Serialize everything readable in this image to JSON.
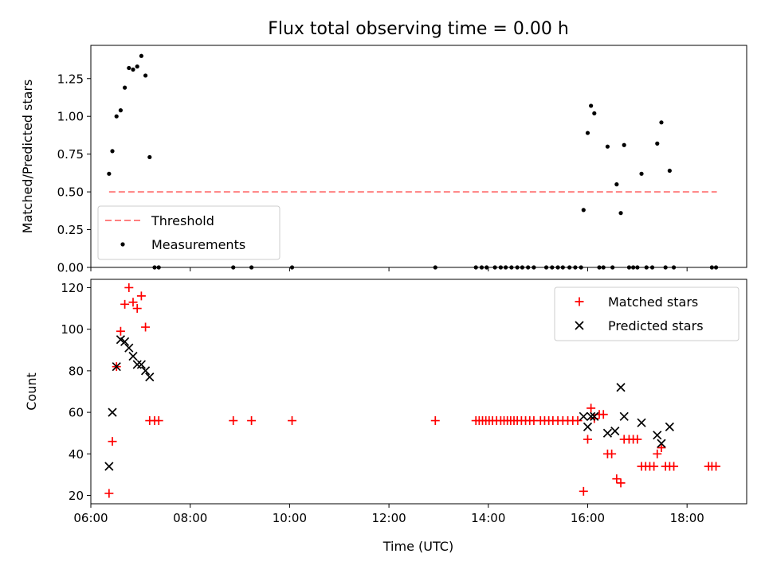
{
  "figure": {
    "title": "Flux total observing time = 0.00 h"
  },
  "chart_data": [
    {
      "type": "scatter",
      "title": "Flux total observing time = 0.00 h",
      "xlabel": "",
      "ylabel": "Matched/Predicted stars",
      "xlim": [
        "06:00",
        "19:12"
      ],
      "ylim": [
        0,
        1.47
      ],
      "yticks": [
        "0.00",
        "0.25",
        "0.50",
        "0.75",
        "1.00",
        "1.25"
      ],
      "legend": [
        "Threshold",
        "Measurements"
      ],
      "legend_location": "lower-left",
      "threshold": {
        "name": "Threshold",
        "x_range": [
          "06:22",
          "18:36"
        ],
        "y": 0.5,
        "color": "#ff8080",
        "style": "dashed"
      },
      "series": [
        {
          "name": "Measurements",
          "color": "#000000",
          "marker": "dot",
          "points": [
            [
              "06:22",
              0.62
            ],
            [
              "06:26",
              0.77
            ],
            [
              "06:31",
              1.0
            ],
            [
              "06:36",
              1.04
            ],
            [
              "06:41",
              1.19
            ],
            [
              "06:46",
              1.32
            ],
            [
              "06:51",
              1.31
            ],
            [
              "06:56",
              1.33
            ],
            [
              "07:01",
              1.4
            ],
            [
              "07:06",
              1.27
            ],
            [
              "07:11",
              0.73
            ],
            [
              "07:17",
              0.0
            ],
            [
              "07:22",
              0.0
            ],
            [
              "08:52",
              0.0
            ],
            [
              "09:14",
              0.0
            ],
            [
              "10:03",
              0.0
            ],
            [
              "12:56",
              0.0
            ],
            [
              "13:45",
              0.0
            ],
            [
              "13:52",
              0.0
            ],
            [
              "13:58",
              0.0
            ],
            [
              "14:08",
              0.0
            ],
            [
              "14:15",
              0.0
            ],
            [
              "14:21",
              0.0
            ],
            [
              "14:28",
              0.0
            ],
            [
              "14:35",
              0.0
            ],
            [
              "14:41",
              0.0
            ],
            [
              "14:48",
              0.0
            ],
            [
              "14:55",
              0.0
            ],
            [
              "15:10",
              0.0
            ],
            [
              "15:17",
              0.0
            ],
            [
              "15:24",
              0.0
            ],
            [
              "15:30",
              0.0
            ],
            [
              "15:38",
              0.0
            ],
            [
              "15:45",
              0.0
            ],
            [
              "15:52",
              0.0
            ],
            [
              "15:55",
              0.38
            ],
            [
              "16:00",
              0.89
            ],
            [
              "16:04",
              1.07
            ],
            [
              "16:08",
              1.02
            ],
            [
              "16:14",
              0.0
            ],
            [
              "16:19",
              0.0
            ],
            [
              "16:24",
              0.8
            ],
            [
              "16:30",
              0.0
            ],
            [
              "16:35",
              0.55
            ],
            [
              "16:40",
              0.36
            ],
            [
              "16:44",
              0.81
            ],
            [
              "16:50",
              0.0
            ],
            [
              "16:55",
              0.0
            ],
            [
              "17:00",
              0.0
            ],
            [
              "17:05",
              0.62
            ],
            [
              "17:11",
              0.0
            ],
            [
              "17:18",
              0.0
            ],
            [
              "17:24",
              0.82
            ],
            [
              "17:29",
              0.96
            ],
            [
              "17:34",
              0.0
            ],
            [
              "17:39",
              0.64
            ],
            [
              "17:44",
              0.0
            ],
            [
              "18:30",
              0.0
            ],
            [
              "18:35",
              0.0
            ]
          ]
        }
      ]
    },
    {
      "type": "scatter",
      "title": "",
      "xlabel": "Time (UTC)",
      "ylabel": "Count",
      "xlim": [
        "06:00",
        "19:12"
      ],
      "ylim": [
        16,
        124
      ],
      "xticks": [
        "06:00",
        "08:00",
        "10:00",
        "12:00",
        "14:00",
        "16:00",
        "18:00"
      ],
      "yticks": [
        "20",
        "40",
        "60",
        "80",
        "100",
        "120"
      ],
      "legend": [
        "Matched stars",
        "Predicted stars"
      ],
      "legend_location": "top-right",
      "series": [
        {
          "name": "Matched stars",
          "color": "#ff0000",
          "marker": "plus",
          "points": [
            [
              "06:22",
              21
            ],
            [
              "06:26",
              46
            ],
            [
              "06:31",
              82
            ],
            [
              "06:36",
              99
            ],
            [
              "06:41",
              112
            ],
            [
              "06:46",
              120
            ],
            [
              "06:51",
              113
            ],
            [
              "06:56",
              110
            ],
            [
              "07:01",
              116
            ],
            [
              "07:06",
              101
            ],
            [
              "07:11",
              56
            ],
            [
              "07:17",
              56
            ],
            [
              "07:22",
              56
            ],
            [
              "08:52",
              56
            ],
            [
              "09:14",
              56
            ],
            [
              "10:03",
              56
            ],
            [
              "12:56",
              56
            ],
            [
              "13:45",
              56
            ],
            [
              "13:49",
              56
            ],
            [
              "13:53",
              56
            ],
            [
              "13:57",
              56
            ],
            [
              "14:01",
              56
            ],
            [
              "14:05",
              56
            ],
            [
              "14:10",
              56
            ],
            [
              "14:15",
              56
            ],
            [
              "14:19",
              56
            ],
            [
              "14:23",
              56
            ],
            [
              "14:27",
              56
            ],
            [
              "14:31",
              56
            ],
            [
              "14:35",
              56
            ],
            [
              "14:40",
              56
            ],
            [
              "14:45",
              56
            ],
            [
              "14:50",
              56
            ],
            [
              "14:55",
              56
            ],
            [
              "15:03",
              56
            ],
            [
              "15:08",
              56
            ],
            [
              "15:13",
              56
            ],
            [
              "15:18",
              56
            ],
            [
              "15:24",
              56
            ],
            [
              "15:30",
              56
            ],
            [
              "15:36",
              56
            ],
            [
              "15:42",
              56
            ],
            [
              "15:48",
              56
            ],
            [
              "15:55",
              22
            ],
            [
              "16:00",
              47
            ],
            [
              "16:04",
              62
            ],
            [
              "16:08",
              57
            ],
            [
              "16:14",
              59
            ],
            [
              "16:19",
              59
            ],
            [
              "16:24",
              40
            ],
            [
              "16:29",
              40
            ],
            [
              "16:35",
              28
            ],
            [
              "16:40",
              26
            ],
            [
              "16:44",
              47
            ],
            [
              "16:50",
              47
            ],
            [
              "16:55",
              47
            ],
            [
              "17:00",
              47
            ],
            [
              "17:05",
              34
            ],
            [
              "17:10",
              34
            ],
            [
              "17:15",
              34
            ],
            [
              "17:20",
              34
            ],
            [
              "17:24",
              40
            ],
            [
              "17:29",
              43
            ],
            [
              "17:34",
              34
            ],
            [
              "17:39",
              34
            ],
            [
              "17:44",
              34
            ],
            [
              "18:26",
              34
            ],
            [
              "18:30",
              34
            ],
            [
              "18:35",
              34
            ]
          ]
        },
        {
          "name": "Predicted stars",
          "color": "#000000",
          "marker": "x",
          "points": [
            [
              "06:22",
              34
            ],
            [
              "06:26",
              60
            ],
            [
              "06:31",
              82
            ],
            [
              "06:36",
              95
            ],
            [
              "06:41",
              94
            ],
            [
              "06:46",
              91
            ],
            [
              "06:51",
              87
            ],
            [
              "06:56",
              83
            ],
            [
              "07:01",
              83
            ],
            [
              "07:06",
              80
            ],
            [
              "07:11",
              77
            ],
            [
              "15:55",
              58
            ],
            [
              "16:00",
              53
            ],
            [
              "16:04",
              58
            ],
            [
              "16:08",
              58
            ],
            [
              "16:24",
              50
            ],
            [
              "16:33",
              51
            ],
            [
              "16:40",
              72
            ],
            [
              "16:44",
              58
            ],
            [
              "17:05",
              55
            ],
            [
              "17:24",
              49
            ],
            [
              "17:29",
              45
            ],
            [
              "17:39",
              53
            ]
          ]
        }
      ]
    }
  ]
}
